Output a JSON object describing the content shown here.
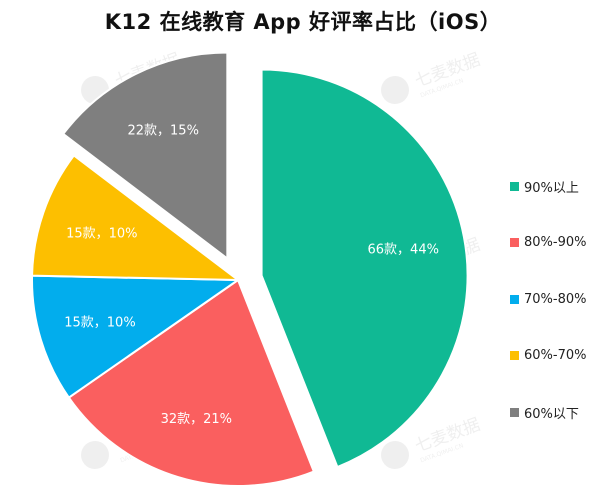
{
  "chart_data": {
    "type": "pie",
    "title": "K12 在线教育 App 好评率占比（iOS）",
    "slices": [
      {
        "name": "90%以上",
        "count": 66,
        "percent": 44,
        "label": "66款，44%",
        "color": "#10b994",
        "exploded": true
      },
      {
        "name": "80%-90%",
        "count": 32,
        "percent": 21,
        "label": "32款，21%",
        "color": "#fa5f5f",
        "exploded": false
      },
      {
        "name": "70%-80%",
        "count": 15,
        "percent": 10,
        "label": "15款，10%",
        "color": "#02aded",
        "exploded": false
      },
      {
        "name": "60%-70%",
        "count": 15,
        "percent": 10,
        "label": "15款，10%",
        "color": "#fdbf00",
        "exploded": false
      },
      {
        "name": "60%以下",
        "count": 22,
        "percent": 15,
        "label": "22款，15%",
        "color": "#7f7f7f",
        "exploded": true
      }
    ],
    "legend_position": "right"
  },
  "watermark": {
    "brand": "七麦数据",
    "subtext": "DATA.QIMAI.CN"
  }
}
